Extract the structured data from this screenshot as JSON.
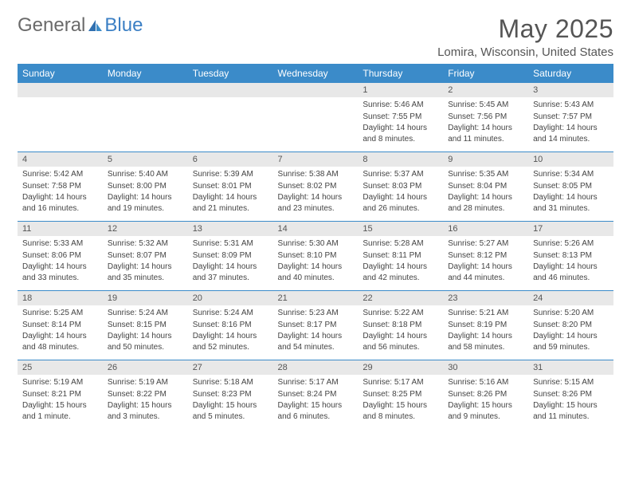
{
  "brand": {
    "part1": "General",
    "part2": "Blue"
  },
  "title": "May 2025",
  "location": "Lomira, Wisconsin, United States",
  "styling": {
    "header_bg": "#3b8bc9",
    "header_text": "#ffffff",
    "daynum_bg": "#e8e8e8",
    "divider": "#3b8bc9",
    "body_text": "#444444",
    "title_color": "#555555",
    "logo_gray": "#6a6a6a",
    "logo_blue": "#3b7fc4",
    "background": "#ffffff",
    "header_fontsize": 12,
    "daynum_fontsize": 11,
    "cell_fontsize": 10,
    "title_fontsize": 32,
    "location_fontsize": 15
  },
  "day_headers": [
    "Sunday",
    "Monday",
    "Tuesday",
    "Wednesday",
    "Thursday",
    "Friday",
    "Saturday"
  ],
  "weeks": [
    [
      null,
      null,
      null,
      null,
      {
        "n": "1",
        "sr": "Sunrise: 5:46 AM",
        "ss": "Sunset: 7:55 PM",
        "dl": "Daylight: 14 hours and 8 minutes."
      },
      {
        "n": "2",
        "sr": "Sunrise: 5:45 AM",
        "ss": "Sunset: 7:56 PM",
        "dl": "Daylight: 14 hours and 11 minutes."
      },
      {
        "n": "3",
        "sr": "Sunrise: 5:43 AM",
        "ss": "Sunset: 7:57 PM",
        "dl": "Daylight: 14 hours and 14 minutes."
      }
    ],
    [
      {
        "n": "4",
        "sr": "Sunrise: 5:42 AM",
        "ss": "Sunset: 7:58 PM",
        "dl": "Daylight: 14 hours and 16 minutes."
      },
      {
        "n": "5",
        "sr": "Sunrise: 5:40 AM",
        "ss": "Sunset: 8:00 PM",
        "dl": "Daylight: 14 hours and 19 minutes."
      },
      {
        "n": "6",
        "sr": "Sunrise: 5:39 AM",
        "ss": "Sunset: 8:01 PM",
        "dl": "Daylight: 14 hours and 21 minutes."
      },
      {
        "n": "7",
        "sr": "Sunrise: 5:38 AM",
        "ss": "Sunset: 8:02 PM",
        "dl": "Daylight: 14 hours and 23 minutes."
      },
      {
        "n": "8",
        "sr": "Sunrise: 5:37 AM",
        "ss": "Sunset: 8:03 PM",
        "dl": "Daylight: 14 hours and 26 minutes."
      },
      {
        "n": "9",
        "sr": "Sunrise: 5:35 AM",
        "ss": "Sunset: 8:04 PM",
        "dl": "Daylight: 14 hours and 28 minutes."
      },
      {
        "n": "10",
        "sr": "Sunrise: 5:34 AM",
        "ss": "Sunset: 8:05 PM",
        "dl": "Daylight: 14 hours and 31 minutes."
      }
    ],
    [
      {
        "n": "11",
        "sr": "Sunrise: 5:33 AM",
        "ss": "Sunset: 8:06 PM",
        "dl": "Daylight: 14 hours and 33 minutes."
      },
      {
        "n": "12",
        "sr": "Sunrise: 5:32 AM",
        "ss": "Sunset: 8:07 PM",
        "dl": "Daylight: 14 hours and 35 minutes."
      },
      {
        "n": "13",
        "sr": "Sunrise: 5:31 AM",
        "ss": "Sunset: 8:09 PM",
        "dl": "Daylight: 14 hours and 37 minutes."
      },
      {
        "n": "14",
        "sr": "Sunrise: 5:30 AM",
        "ss": "Sunset: 8:10 PM",
        "dl": "Daylight: 14 hours and 40 minutes."
      },
      {
        "n": "15",
        "sr": "Sunrise: 5:28 AM",
        "ss": "Sunset: 8:11 PM",
        "dl": "Daylight: 14 hours and 42 minutes."
      },
      {
        "n": "16",
        "sr": "Sunrise: 5:27 AM",
        "ss": "Sunset: 8:12 PM",
        "dl": "Daylight: 14 hours and 44 minutes."
      },
      {
        "n": "17",
        "sr": "Sunrise: 5:26 AM",
        "ss": "Sunset: 8:13 PM",
        "dl": "Daylight: 14 hours and 46 minutes."
      }
    ],
    [
      {
        "n": "18",
        "sr": "Sunrise: 5:25 AM",
        "ss": "Sunset: 8:14 PM",
        "dl": "Daylight: 14 hours and 48 minutes."
      },
      {
        "n": "19",
        "sr": "Sunrise: 5:24 AM",
        "ss": "Sunset: 8:15 PM",
        "dl": "Daylight: 14 hours and 50 minutes."
      },
      {
        "n": "20",
        "sr": "Sunrise: 5:24 AM",
        "ss": "Sunset: 8:16 PM",
        "dl": "Daylight: 14 hours and 52 minutes."
      },
      {
        "n": "21",
        "sr": "Sunrise: 5:23 AM",
        "ss": "Sunset: 8:17 PM",
        "dl": "Daylight: 14 hours and 54 minutes."
      },
      {
        "n": "22",
        "sr": "Sunrise: 5:22 AM",
        "ss": "Sunset: 8:18 PM",
        "dl": "Daylight: 14 hours and 56 minutes."
      },
      {
        "n": "23",
        "sr": "Sunrise: 5:21 AM",
        "ss": "Sunset: 8:19 PM",
        "dl": "Daylight: 14 hours and 58 minutes."
      },
      {
        "n": "24",
        "sr": "Sunrise: 5:20 AM",
        "ss": "Sunset: 8:20 PM",
        "dl": "Daylight: 14 hours and 59 minutes."
      }
    ],
    [
      {
        "n": "25",
        "sr": "Sunrise: 5:19 AM",
        "ss": "Sunset: 8:21 PM",
        "dl": "Daylight: 15 hours and 1 minute."
      },
      {
        "n": "26",
        "sr": "Sunrise: 5:19 AM",
        "ss": "Sunset: 8:22 PM",
        "dl": "Daylight: 15 hours and 3 minutes."
      },
      {
        "n": "27",
        "sr": "Sunrise: 5:18 AM",
        "ss": "Sunset: 8:23 PM",
        "dl": "Daylight: 15 hours and 5 minutes."
      },
      {
        "n": "28",
        "sr": "Sunrise: 5:17 AM",
        "ss": "Sunset: 8:24 PM",
        "dl": "Daylight: 15 hours and 6 minutes."
      },
      {
        "n": "29",
        "sr": "Sunrise: 5:17 AM",
        "ss": "Sunset: 8:25 PM",
        "dl": "Daylight: 15 hours and 8 minutes."
      },
      {
        "n": "30",
        "sr": "Sunrise: 5:16 AM",
        "ss": "Sunset: 8:26 PM",
        "dl": "Daylight: 15 hours and 9 minutes."
      },
      {
        "n": "31",
        "sr": "Sunrise: 5:15 AM",
        "ss": "Sunset: 8:26 PM",
        "dl": "Daylight: 15 hours and 11 minutes."
      }
    ]
  ]
}
